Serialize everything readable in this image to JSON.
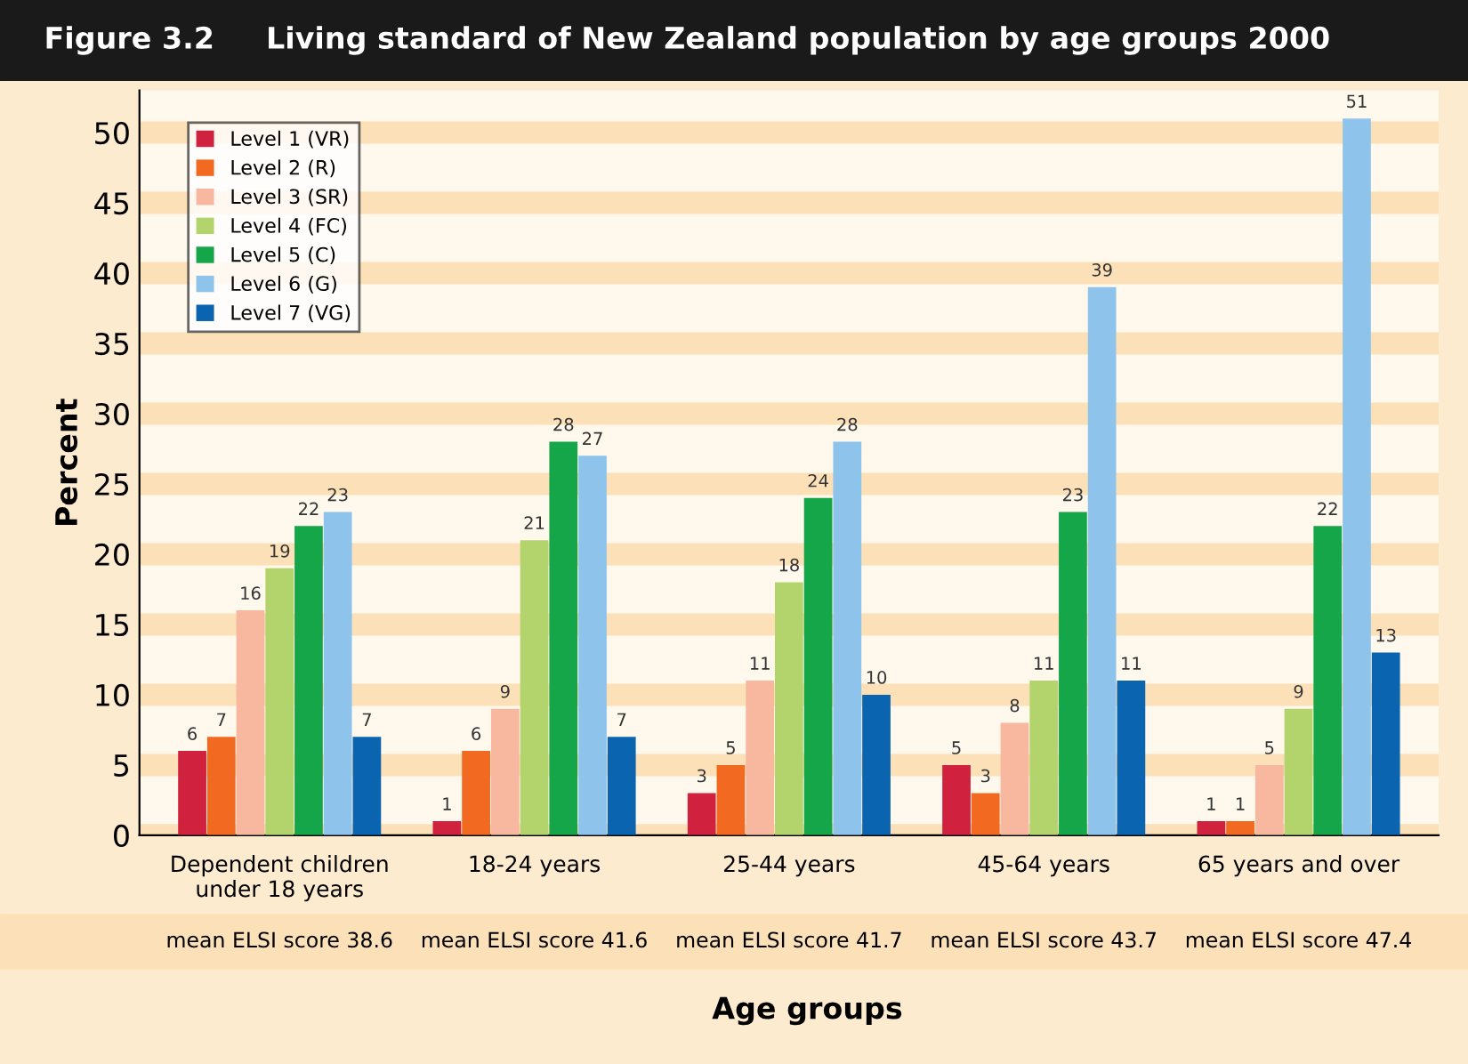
{
  "chart_data": {
    "type": "bar",
    "title": "Figure 3.2     Living standard of New Zealand population by age groups 2000",
    "xlabel": "Age groups",
    "ylabel": "Percent",
    "categories": [
      "Dependent children\nunder 18 years",
      "18-24 years",
      "25-44 years",
      "45-64 years",
      "65 years and over"
    ],
    "series": [
      {
        "name": "Level 1 (VR)",
        "color": "#d0223e",
        "values": [
          6,
          1,
          3,
          5,
          1
        ]
      },
      {
        "name": "Level 2 (R)",
        "color": "#f26a21",
        "values": [
          7,
          6,
          5,
          3,
          1
        ]
      },
      {
        "name": "Level 3 (SR)",
        "color": "#f8b8a0",
        "values": [
          16,
          9,
          11,
          8,
          5
        ]
      },
      {
        "name": "Level 4 (FC)",
        "color": "#b3d46c",
        "values": [
          19,
          21,
          18,
          11,
          9
        ]
      },
      {
        "name": "Level 5 (C)",
        "color": "#16a64a",
        "values": [
          22,
          28,
          24,
          23,
          22
        ]
      },
      {
        "name": "Level 6 (G)",
        "color": "#8ec4ec",
        "values": [
          23,
          27,
          28,
          39,
          51
        ]
      },
      {
        "name": "Level 7 (VG)",
        "color": "#0b64b0",
        "values": [
          7,
          7,
          10,
          11,
          13
        ]
      }
    ],
    "annotations": [
      "mean ELSI score 38.6",
      "mean ELSI score 41.6",
      "mean ELSI score 41.7",
      "mean ELSI score 43.7",
      "mean ELSI score 47.4"
    ],
    "ylim": [
      0,
      53
    ],
    "yticks": [
      0,
      5,
      10,
      15,
      20,
      25,
      30,
      35,
      40,
      45,
      50
    ],
    "grid": "y",
    "legend": "top left",
    "data_labels": true
  }
}
